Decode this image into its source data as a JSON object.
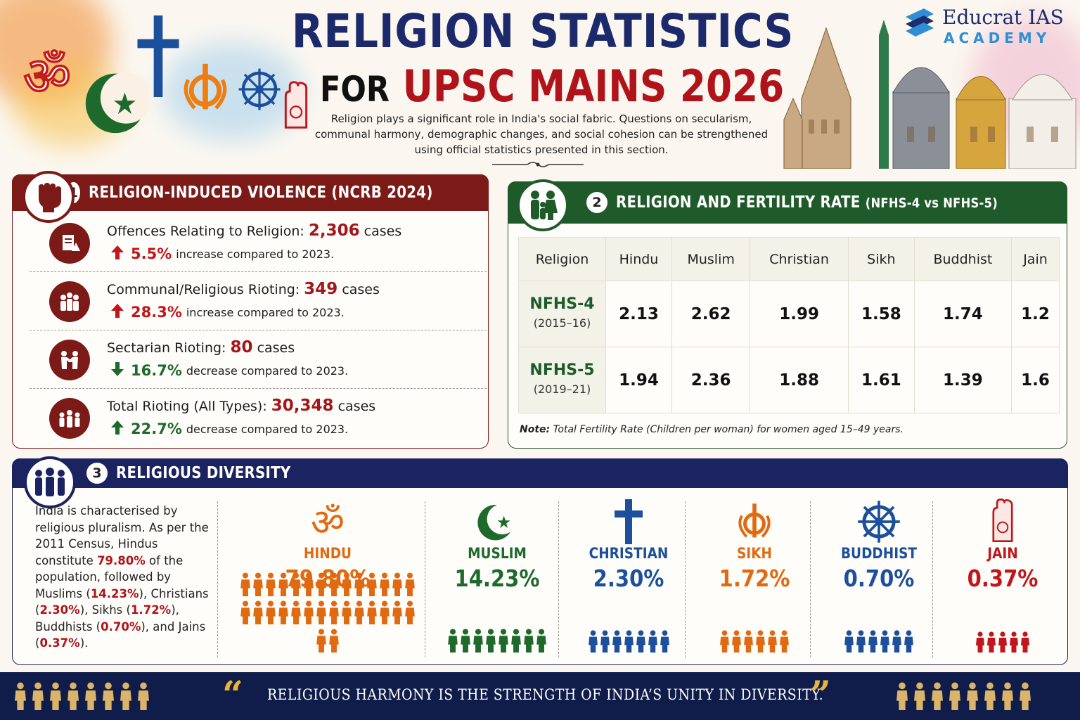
{
  "header": {
    "title_line1": "RELIGION STATISTICS",
    "title_line2_a": "FOR",
    "title_line2_b": "UPSC MAINS 2026",
    "intro": "Religion plays a significant role in India's social fabric. Questions on secularism, communal harmony, demographic changes, and social cohesion can be strengthened using official statistics presented in this section.",
    "logo_name": "Educrat IAS",
    "logo_sub": "ACADEMY"
  },
  "violence": {
    "number": "1",
    "title": "RELIGION-INDUCED VIOLENCE (NCRB 2024)",
    "items": [
      {
        "label": "Offences Relating to Religion:",
        "value": "2,306",
        "unit": "cases",
        "arrow": "up",
        "pct": "5.5%",
        "text": "increase compared to 2023.",
        "icon": "document-warning-icon"
      },
      {
        "label": "Communal/Religious Rioting:",
        "value": "349",
        "unit": "cases",
        "arrow": "up",
        "pct": "28.3%",
        "text": "increase compared to 2023.",
        "icon": "group-icon"
      },
      {
        "label": "Sectarian Rioting:",
        "value": "80",
        "unit": "cases",
        "arrow": "down",
        "pct": "16.7%",
        "text": "decrease compared to 2023.",
        "icon": "conflict-icon"
      },
      {
        "label": "Total Rioting (All Types):",
        "value": "30,348",
        "unit": "cases",
        "arrow": "up-green",
        "pct": "22.7%",
        "text": "decrease compared to 2023.",
        "icon": "crowd-icon"
      }
    ]
  },
  "fertility": {
    "number": "2",
    "title": "RELIGION AND FERTILITY RATE",
    "subtitle": "(NFHS-4 vs NFHS-5)",
    "columns": [
      "Religion",
      "Hindu",
      "Muslim",
      "Christian",
      "Sikh",
      "Buddhist",
      "Jain"
    ],
    "rows": [
      {
        "label": "NFHS-4",
        "period": "(2015–16)",
        "values": [
          "2.13",
          "2.62",
          "1.99",
          "1.58",
          "1.74",
          "1.2"
        ]
      },
      {
        "label": "NFHS-5",
        "period": "(2019–21)",
        "values": [
          "1.94",
          "2.36",
          "1.88",
          "1.61",
          "1.39",
          "1.6"
        ]
      }
    ],
    "note_label": "Note:",
    "note": "Total Fertility Rate (Children per woman) for women aged 15–49 years."
  },
  "diversity": {
    "number": "3",
    "title": "RELIGIOUS DIVERSITY",
    "text_parts": [
      {
        "t": "India is characterised by religious pluralism. As per the 2011 Census, Hindus constitute ",
        "hl": false
      },
      {
        "t": "79.80%",
        "hl": true
      },
      {
        "t": " of the population, followed by Muslims (",
        "hl": false
      },
      {
        "t": "14.23%",
        "hl": true
      },
      {
        "t": "), Christians (",
        "hl": false
      },
      {
        "t": "2.30%",
        "hl": true
      },
      {
        "t": "), Sikhs (",
        "hl": false
      },
      {
        "t": "1.72%",
        "hl": true
      },
      {
        "t": "), Buddhists (",
        "hl": false
      },
      {
        "t": "0.70%",
        "hl": true
      },
      {
        "t": "), and Jains (",
        "hl": false
      },
      {
        "t": "0.37%",
        "hl": true
      },
      {
        "t": ").",
        "hl": false
      }
    ],
    "groups": [
      {
        "name": "HINDU",
        "pct": "79.80%",
        "share": 79.8,
        "color": "#e06a12",
        "icon": "om-icon"
      },
      {
        "name": "MUSLIM",
        "pct": "14.23%",
        "share": 14.23,
        "color": "#1e6a2c",
        "icon": "crescent-star-icon"
      },
      {
        "name": "CHRISTIAN",
        "pct": "2.30%",
        "share": 2.3,
        "color": "#1c4f9c",
        "icon": "cross-icon"
      },
      {
        "name": "SIKH",
        "pct": "1.72%",
        "share": 1.72,
        "color": "#e06a12",
        "icon": "khanda-icon"
      },
      {
        "name": "BUDDHIST",
        "pct": "0.70%",
        "share": 0.7,
        "color": "#1c4f9c",
        "icon": "dharma-wheel-icon"
      },
      {
        "name": "JAIN",
        "pct": "0.37%",
        "share": 0.37,
        "color": "#c0161c",
        "icon": "jain-hand-icon"
      }
    ]
  },
  "footer": {
    "quote": "RELIGIOUS  HARMONY IS THE STRENGTH OF INDIA’S UNITY IN DIVERSITY."
  },
  "colors": {
    "navy": "#1c2a6b",
    "maroon": "#7b1a17",
    "green": "#1f5a2a",
    "red": "#b0141a",
    "footer": "#101d4a"
  }
}
